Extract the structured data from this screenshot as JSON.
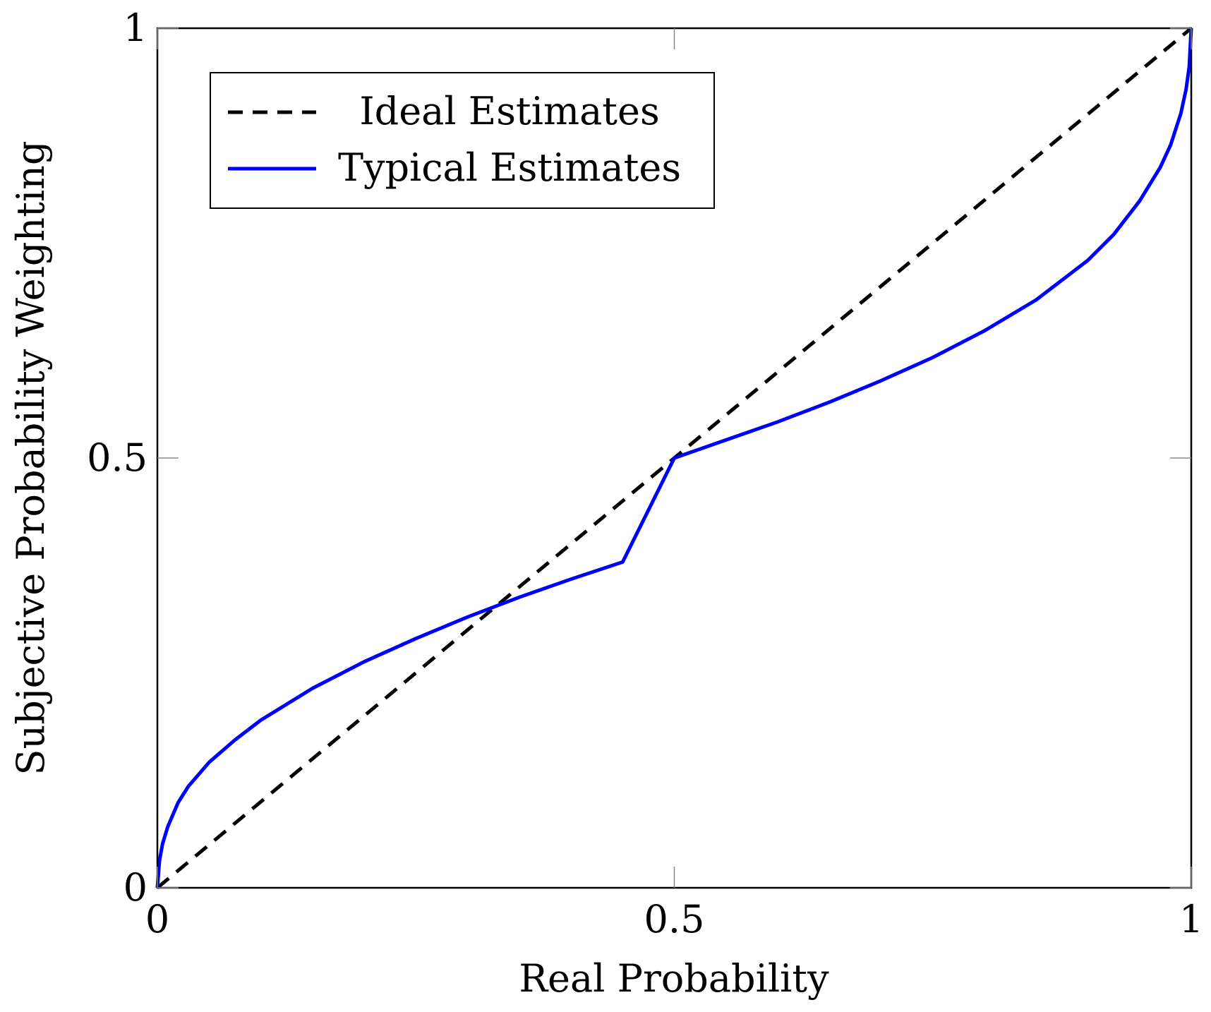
{
  "chart_data": {
    "type": "line",
    "xlabel": "Real Probability",
    "ylabel": "Subjective Probability Weighting",
    "xlim": [
      0,
      1
    ],
    "ylim": [
      0,
      1
    ],
    "x_ticks": [
      {
        "value": 0,
        "label": "0"
      },
      {
        "value": 0.5,
        "label": "0.5"
      },
      {
        "value": 1,
        "label": "1"
      }
    ],
    "y_ticks": [
      {
        "value": 0,
        "label": "0"
      },
      {
        "value": 0.5,
        "label": "0.5"
      },
      {
        "value": 1,
        "label": "1"
      }
    ],
    "grid": false,
    "legend_position": "top-left",
    "series": [
      {
        "name": "Ideal Estimates",
        "style": "dashed",
        "color": "#000000",
        "x": [
          0,
          1
        ],
        "y": [
          0,
          1
        ]
      },
      {
        "name": "Typical Estimates",
        "style": "solid",
        "color": "#0000ff",
        "x": [
          0,
          0.002,
          0.005,
          0.01,
          0.02,
          0.03,
          0.05,
          0.075,
          0.1,
          0.15,
          0.2,
          0.25,
          0.3,
          0.35,
          0.4,
          0.45,
          0.5,
          0.55,
          0.6,
          0.65,
          0.7,
          0.75,
          0.8,
          0.85,
          0.9,
          0.925,
          0.95,
          0.97,
          0.98,
          0.99,
          0.995,
          0.998,
          1
        ],
        "y": [
          0,
          0.031,
          0.051,
          0.071,
          0.099,
          0.118,
          0.146,
          0.172,
          0.195,
          0.232,
          0.263,
          0.29,
          0.315,
          0.338,
          0.359,
          0.379,
          0.5,
          0.521,
          0.542,
          0.565,
          0.59,
          0.617,
          0.648,
          0.684,
          0.73,
          0.76,
          0.799,
          0.838,
          0.864,
          0.901,
          0.929,
          0.955,
          1
        ]
      }
    ]
  }
}
